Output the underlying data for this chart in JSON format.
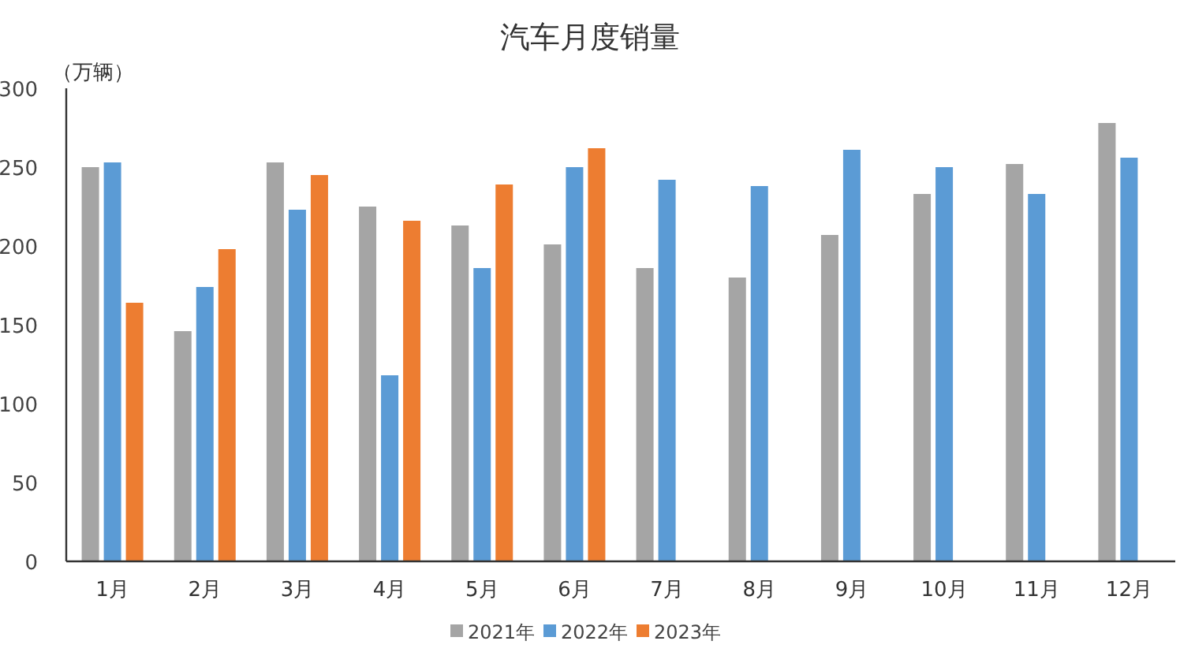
{
  "chart_data": {
    "type": "bar",
    "title": "汽车月度销量",
    "ylabel": "（万辆）",
    "categories": [
      "1月",
      "2月",
      "3月",
      "4月",
      "5月",
      "6月",
      "7月",
      "8月",
      "9月",
      "10月",
      "11月",
      "12月"
    ],
    "series": [
      {
        "name": "2021年",
        "color": "#a5a5a5",
        "values": [
          250,
          146,
          253,
          225,
          213,
          201,
          186,
          180,
          207,
          233,
          252,
          278
        ]
      },
      {
        "name": "2022年",
        "color": "#5b9bd5",
        "values": [
          253,
          174,
          223,
          118,
          186,
          250,
          242,
          238,
          261,
          250,
          233,
          256
        ]
      },
      {
        "name": "2023年",
        "color": "#ed7d31",
        "values": [
          164,
          198,
          245,
          216,
          239,
          262,
          null,
          null,
          null,
          null,
          null,
          null
        ]
      }
    ],
    "ylim": [
      0,
      300
    ],
    "yticks": [
      0,
      50,
      100,
      150,
      200,
      250,
      300
    ],
    "grid": false,
    "legend": "bottom"
  }
}
